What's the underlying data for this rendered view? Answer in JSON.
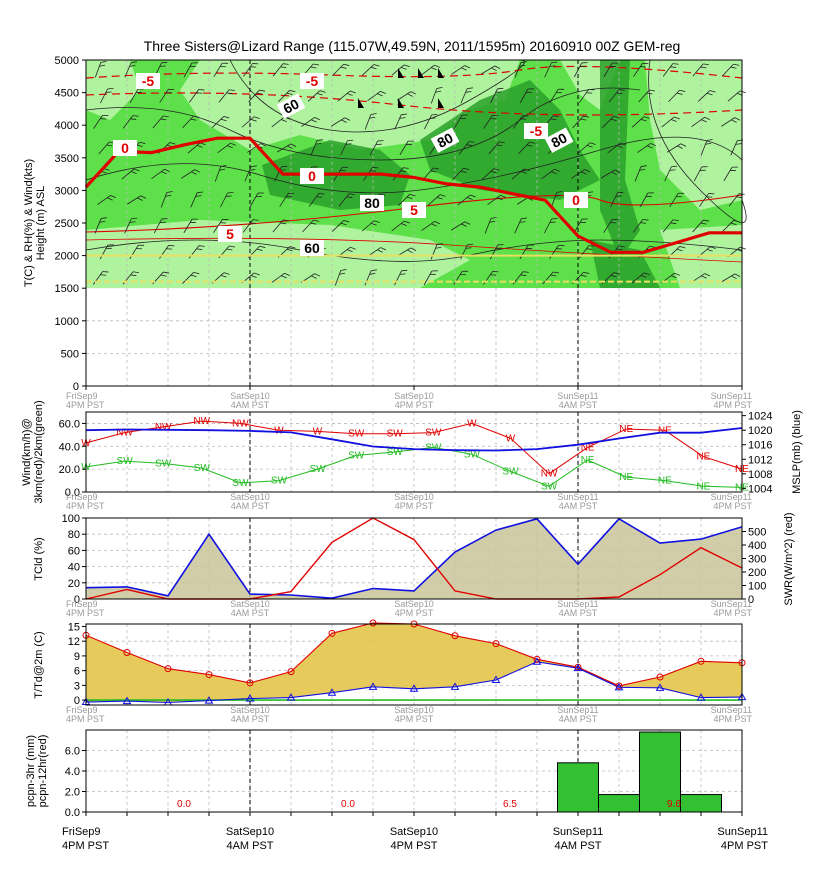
{
  "title": "Three Sisters@Lizard Range (115.07W,49.59N, 2011/1595m)  20160910  00Z  GEM-reg",
  "colors": {
    "red": "#e00000",
    "blue": "#1010e0",
    "green": "#22bb22",
    "fill_tan": "#c9c49a",
    "fill_gold": "#e3c44a",
    "bar_green": "#33c033",
    "green_light": "#b8f5a8",
    "green_mid": "#5ee04a",
    "green_dark": "#2aa02a",
    "yellow_line": "#e8e060"
  },
  "x_ticks": [
    {
      "day": "FriSep9",
      "time": "4PM PST"
    },
    {
      "day": "SatSep10",
      "time": "4AM PST"
    },
    {
      "day": "SatSep10",
      "time": "4PM PST"
    },
    {
      "day": "SunSep11",
      "time": "4AM PST"
    },
    {
      "day": "SunSep11",
      "time": "4PM PST"
    }
  ],
  "chart_data": [
    {
      "type": "heatmap",
      "name": "height-section",
      "ylabel": "T(C) & RH(%) & Wind(kts)\nHeight (m) ASL",
      "ylim": [
        0,
        5000
      ],
      "yticks": [
        0,
        500,
        1000,
        1500,
        2000,
        2500,
        3000,
        3500,
        4000,
        4500,
        5000
      ],
      "terrain_height_m": 1500,
      "freezing_level_m": [
        3050,
        3600,
        3580,
        3700,
        3800,
        3800,
        3250,
        3250,
        3250,
        3250,
        3200,
        3100,
        3050,
        2950,
        2850,
        2300,
        2050,
        2050,
        2200,
        2350,
        2350
      ],
      "contour_labels": [
        {
          "text": "-5",
          "color": "red"
        },
        {
          "text": "-5",
          "color": "red"
        },
        {
          "text": "-5",
          "color": "red"
        },
        {
          "text": "0",
          "color": "red"
        },
        {
          "text": "0",
          "color": "red"
        },
        {
          "text": "0",
          "color": "red"
        },
        {
          "text": "5",
          "color": "red"
        },
        {
          "text": "5",
          "color": "red"
        },
        {
          "text": "60",
          "color": "black"
        },
        {
          "text": "60",
          "color": "black"
        },
        {
          "text": "80",
          "color": "black"
        },
        {
          "text": "80",
          "color": "black"
        },
        {
          "text": "80",
          "color": "black"
        }
      ]
    },
    {
      "type": "line",
      "name": "wind-pressure",
      "ylabel_left": "Wind(km/h)@\n3km(red)/2km(green)",
      "ylabel_right": "MSLP(mb) (blue)",
      "ylim_left": [
        0,
        70
      ],
      "yticks_left": [
        "0.0",
        "20.0",
        "40.0",
        "60.0"
      ],
      "ylim_right": [
        1003,
        1025
      ],
      "yticks_right": [
        1004,
        1008,
        1012,
        1016,
        1020,
        1024
      ],
      "series": [
        {
          "name": "3km",
          "color": "red",
          "values": [
            43,
            52,
            57,
            62,
            60,
            54,
            53,
            51,
            51,
            52,
            60,
            47,
            16,
            39,
            55,
            54,
            31,
            20
          ],
          "dir": [
            "W",
            "NW",
            "NW",
            "NW",
            "NW",
            "W",
            "W",
            "SW",
            "SW",
            "SW",
            "W",
            "W",
            "NW",
            "NE",
            "NE",
            "NE",
            "NE",
            "NE"
          ]
        },
        {
          "name": "2km",
          "color": "green",
          "values": [
            22,
            27,
            25,
            21,
            8,
            10,
            20,
            32,
            35,
            39,
            33,
            18,
            5,
            28,
            13,
            10,
            5,
            4
          ],
          "dir": [
            "W",
            "SW",
            "SW",
            "SW",
            "SW",
            "SW",
            "SW",
            "SW",
            "SW",
            "SW",
            "SW",
            "SW",
            "SW",
            "NE",
            "NE",
            "NE",
            "NE",
            "NE"
          ]
        },
        {
          "name": "MSLP",
          "color": "blue",
          "values": [
            1020,
            1020.2,
            1020.1,
            1020,
            1019.8,
            1019.4,
            1017.5,
            1015.5,
            1014.8,
            1014.5,
            1014.4,
            1014.8,
            1016,
            1017.7,
            1019.3,
            1019.3,
            1020.6
          ]
        }
      ]
    },
    {
      "type": "area",
      "name": "cloud-radiation",
      "ylabel_left": "TCld (%)",
      "ylabel_right": "SWR(W/m^2) (red)",
      "ylim_left": [
        0,
        100
      ],
      "yticks_left": [
        0,
        20,
        40,
        60,
        80,
        100
      ],
      "ylim_right": [
        0,
        600
      ],
      "yticks_right": [
        0,
        100,
        200,
        300,
        400,
        500
      ],
      "series": [
        {
          "name": "TCld",
          "color": "blue",
          "values": [
            14,
            15,
            4,
            80,
            6,
            5,
            1,
            13,
            10,
            58,
            85,
            99,
            43,
            99,
            69,
            74,
            89
          ]
        },
        {
          "name": "SWR",
          "color": "red",
          "values": [
            0,
            70,
            0,
            0,
            0,
            55,
            420,
            600,
            440,
            60,
            0,
            0,
            0,
            15,
            180,
            380,
            230
          ]
        }
      ]
    },
    {
      "type": "area",
      "name": "temperature",
      "ylabel": "T/Td@2m (C)",
      "ylim": [
        -1,
        15.5
      ],
      "yticks": [
        0,
        3,
        6,
        9,
        12,
        15
      ],
      "series": [
        {
          "name": "T",
          "color": "red",
          "values": [
            13.2,
            9.7,
            6.4,
            5.2,
            3.5,
            5.8,
            13.6,
            15.7,
            15.5,
            13.1,
            11.5,
            8.3,
            6.7,
            2.9,
            4.7,
            7.9,
            7.6
          ]
        },
        {
          "name": "Td",
          "color": "blue",
          "values": [
            -0.4,
            -0.2,
            -0.5,
            -0.1,
            0.3,
            0.5,
            1.5,
            2.7,
            2.3,
            2.7,
            4.1,
            7.8,
            6.5,
            2.6,
            2.5,
            0.5,
            0.6
          ]
        }
      ]
    },
    {
      "type": "bar",
      "name": "precipitation",
      "ylabel": "pcpn-3hr (mm)\npcpn-12hr(red)",
      "ylim": [
        0,
        8
      ],
      "yticks": [
        "0.0",
        "2.0",
        "4.0",
        "6.0"
      ],
      "bars_3hr": [
        0,
        0,
        0,
        0,
        0,
        0,
        0,
        0,
        0,
        0,
        0,
        4.8,
        1.7,
        7.8,
        1.7,
        0
      ],
      "totals_12hr": [
        "0.0",
        "0.0",
        "6.5",
        "9.6"
      ]
    }
  ]
}
